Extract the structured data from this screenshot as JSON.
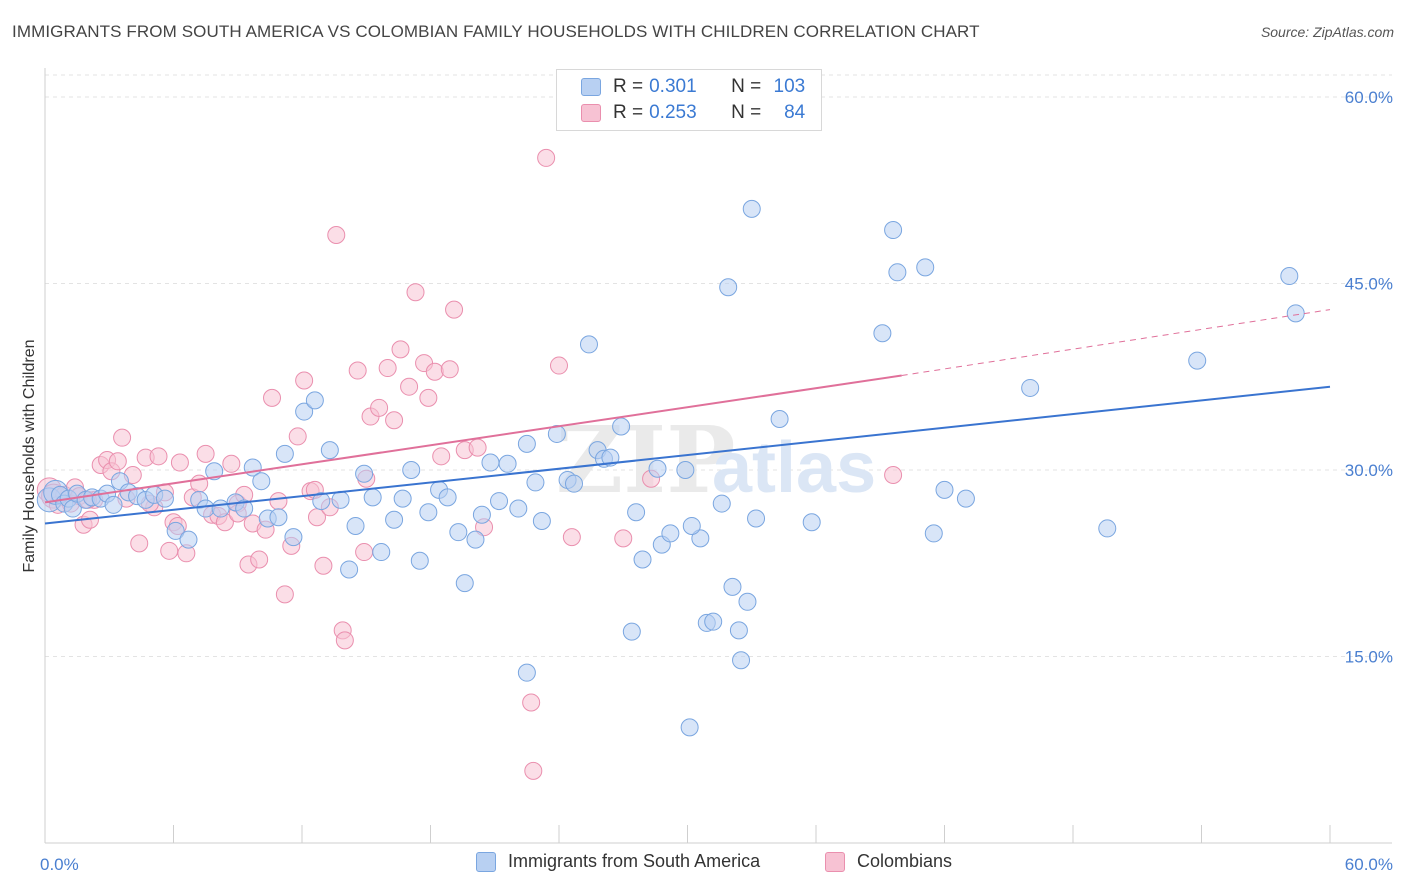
{
  "title": "IMMIGRANTS FROM SOUTH AMERICA VS COLOMBIAN FAMILY HOUSEHOLDS WITH CHILDREN CORRELATION CHART",
  "source": "Source: ZipAtlas.com",
  "watermark": {
    "zip": "ZIP",
    "atlas": "atlas"
  },
  "colors": {
    "blue_fill": "#b8d0f2",
    "blue_stroke": "#7aa6e0",
    "blue_line": "#3a74d0",
    "pink_fill": "#f7c2d3",
    "pink_stroke": "#ea8fae",
    "pink_line": "#e0709a",
    "tick_text": "#4a7fd0",
    "grid": "#e3e3e3"
  },
  "legend": {
    "rows": [
      {
        "r_label": "R = ",
        "r_value": "0.301",
        "n_label": "N = ",
        "n_value": "103"
      },
      {
        "r_label": "R = ",
        "r_value": "0.253",
        "n_label": "N = ",
        "n_value": "84"
      }
    ]
  },
  "chart_data": {
    "type": "scatter",
    "title": "IMMIGRANTS FROM SOUTH AMERICA VS COLOMBIAN FAMILY HOUSEHOLDS WITH CHILDREN CORRELATION CHART",
    "xlabel": "",
    "ylabel": "Family Households with Children",
    "xlim": [
      0,
      60
    ],
    "ylim": [
      0,
      62
    ],
    "x_tick_labels": [
      {
        "value": 0,
        "label": "0.0%"
      },
      {
        "value": 60,
        "label": "60.0%"
      }
    ],
    "y_tick_labels": [
      {
        "value": 15,
        "label": "15.0%"
      },
      {
        "value": 30,
        "label": "30.0%"
      },
      {
        "value": 45,
        "label": "45.0%"
      },
      {
        "value": 60,
        "label": "60.0%"
      }
    ],
    "grid": "horizontal dashed",
    "series": [
      {
        "name": "Immigrants from South America",
        "r": 0.301,
        "n": 103,
        "trend": {
          "x": [
            0,
            60
          ],
          "y": [
            25.7,
            36.7
          ],
          "dashed_from_x": null
        },
        "points": [
          [
            0.2,
            27.6
          ],
          [
            0.5,
            28.2
          ],
          [
            0.7,
            28.0
          ],
          [
            0.9,
            27.3
          ],
          [
            1.1,
            27.7
          ],
          [
            1.3,
            26.9
          ],
          [
            1.5,
            28.1
          ],
          [
            1.9,
            27.6
          ],
          [
            2.2,
            27.8
          ],
          [
            2.6,
            27.7
          ],
          [
            2.9,
            28.1
          ],
          [
            3.2,
            27.2
          ],
          [
            3.5,
            29.1
          ],
          [
            3.9,
            28.2
          ],
          [
            4.3,
            27.9
          ],
          [
            4.7,
            27.6
          ],
          [
            5.1,
            28.0
          ],
          [
            5.6,
            27.7
          ],
          [
            6.1,
            25.1
          ],
          [
            6.7,
            24.4
          ],
          [
            7.2,
            27.6
          ],
          [
            7.5,
            26.9
          ],
          [
            7.9,
            29.9
          ],
          [
            8.2,
            26.9
          ],
          [
            8.9,
            27.4
          ],
          [
            9.3,
            26.9
          ],
          [
            9.7,
            30.2
          ],
          [
            10.1,
            29.1
          ],
          [
            10.4,
            26.1
          ],
          [
            10.9,
            26.2
          ],
          [
            11.2,
            31.3
          ],
          [
            11.6,
            24.6
          ],
          [
            12.1,
            34.7
          ],
          [
            12.6,
            35.6
          ],
          [
            12.9,
            27.5
          ],
          [
            13.3,
            31.6
          ],
          [
            13.8,
            27.6
          ],
          [
            14.2,
            22.0
          ],
          [
            14.5,
            25.5
          ],
          [
            14.9,
            29.7
          ],
          [
            15.3,
            27.8
          ],
          [
            15.7,
            23.4
          ],
          [
            16.3,
            26.0
          ],
          [
            16.7,
            27.7
          ],
          [
            17.1,
            30.0
          ],
          [
            17.5,
            22.7
          ],
          [
            17.9,
            26.6
          ],
          [
            18.4,
            28.4
          ],
          [
            18.8,
            27.8
          ],
          [
            19.3,
            25.0
          ],
          [
            19.6,
            20.9
          ],
          [
            20.1,
            24.4
          ],
          [
            20.4,
            26.4
          ],
          [
            20.8,
            30.6
          ],
          [
            21.2,
            27.5
          ],
          [
            21.6,
            30.5
          ],
          [
            22.1,
            26.9
          ],
          [
            22.5,
            32.1
          ],
          [
            22.9,
            29.0
          ],
          [
            23.2,
            25.9
          ],
          [
            23.9,
            32.9
          ],
          [
            24.4,
            29.2
          ],
          [
            24.7,
            28.9
          ],
          [
            25.4,
            40.1
          ],
          [
            25.8,
            31.6
          ],
          [
            26.1,
            30.9
          ],
          [
            26.4,
            31.0
          ],
          [
            26.9,
            33.5
          ],
          [
            27.4,
            17.0
          ],
          [
            27.6,
            26.6
          ],
          [
            27.9,
            22.8
          ],
          [
            28.6,
            30.1
          ],
          [
            28.8,
            24.0
          ],
          [
            29.2,
            24.9
          ],
          [
            29.9,
            30.0
          ],
          [
            30.1,
            9.3
          ],
          [
            30.6,
            24.5
          ],
          [
            30.9,
            17.7
          ],
          [
            31.2,
            17.8
          ],
          [
            31.6,
            27.3
          ],
          [
            32.1,
            20.6
          ],
          [
            32.8,
            19.4
          ],
          [
            33.2,
            26.1
          ],
          [
            32.5,
            14.7
          ],
          [
            32.4,
            17.1
          ],
          [
            34.3,
            34.1
          ],
          [
            33.0,
            51.0
          ],
          [
            31.9,
            44.7
          ],
          [
            35.8,
            25.8
          ],
          [
            39.6,
            49.3
          ],
          [
            39.1,
            41.0
          ],
          [
            39.8,
            45.9
          ],
          [
            41.1,
            46.3
          ],
          [
            41.5,
            24.9
          ],
          [
            42.0,
            28.4
          ],
          [
            43.0,
            27.7
          ],
          [
            46.0,
            36.6
          ],
          [
            49.6,
            25.3
          ],
          [
            53.8,
            38.8
          ],
          [
            58.1,
            45.6
          ],
          [
            58.4,
            42.6
          ],
          [
            22.5,
            13.7
          ],
          [
            30.2,
            25.5
          ]
        ]
      },
      {
        "name": "Colombians",
        "r": 0.253,
        "n": 84,
        "trend": {
          "x": [
            0,
            40
          ],
          "y": [
            27.4,
            37.6
          ],
          "dashed_from_x": 40,
          "dashed_to": [
            60,
            42.9
          ]
        },
        "points": [
          [
            0.2,
            28.4
          ],
          [
            0.4,
            27.9
          ],
          [
            0.6,
            27.2
          ],
          [
            0.9,
            28.0
          ],
          [
            1.2,
            27.3
          ],
          [
            1.4,
            28.6
          ],
          [
            1.6,
            27.9
          ],
          [
            1.8,
            25.6
          ],
          [
            2.1,
            26.0
          ],
          [
            2.3,
            27.6
          ],
          [
            2.6,
            30.4
          ],
          [
            2.9,
            30.8
          ],
          [
            3.1,
            29.9
          ],
          [
            3.4,
            30.7
          ],
          [
            3.6,
            32.6
          ],
          [
            3.8,
            27.7
          ],
          [
            4.1,
            29.6
          ],
          [
            4.4,
            24.1
          ],
          [
            4.7,
            31.0
          ],
          [
            5.1,
            27.0
          ],
          [
            5.3,
            31.1
          ],
          [
            5.6,
            28.2
          ],
          [
            5.8,
            23.5
          ],
          [
            6.0,
            25.8
          ],
          [
            6.3,
            30.6
          ],
          [
            6.6,
            23.3
          ],
          [
            6.9,
            27.8
          ],
          [
            7.2,
            28.9
          ],
          [
            7.5,
            31.3
          ],
          [
            7.8,
            26.4
          ],
          [
            8.1,
            26.3
          ],
          [
            8.4,
            25.8
          ],
          [
            8.7,
            30.5
          ],
          [
            9.0,
            27.3
          ],
          [
            9.3,
            28.0
          ],
          [
            9.5,
            22.4
          ],
          [
            9.7,
            25.7
          ],
          [
            10.0,
            22.8
          ],
          [
            10.3,
            25.2
          ],
          [
            10.6,
            35.8
          ],
          [
            10.9,
            27.5
          ],
          [
            11.2,
            20.0
          ],
          [
            11.5,
            23.9
          ],
          [
            11.8,
            32.7
          ],
          [
            12.1,
            37.2
          ],
          [
            12.4,
            28.3
          ],
          [
            12.7,
            26.2
          ],
          [
            13.0,
            22.3
          ],
          [
            13.3,
            27.0
          ],
          [
            13.6,
            48.9
          ],
          [
            13.9,
            17.1
          ],
          [
            14.0,
            16.3
          ],
          [
            14.6,
            38.0
          ],
          [
            14.9,
            23.4
          ],
          [
            15.2,
            34.3
          ],
          [
            15.6,
            35.0
          ],
          [
            16.0,
            38.2
          ],
          [
            16.3,
            34.0
          ],
          [
            16.6,
            39.7
          ],
          [
            17.0,
            36.7
          ],
          [
            17.3,
            44.3
          ],
          [
            17.7,
            38.6
          ],
          [
            17.9,
            35.8
          ],
          [
            18.2,
            37.9
          ],
          [
            18.5,
            31.1
          ],
          [
            18.9,
            38.1
          ],
          [
            19.1,
            42.9
          ],
          [
            19.6,
            31.6
          ],
          [
            20.2,
            31.8
          ],
          [
            20.5,
            25.4
          ],
          [
            22.7,
            11.3
          ],
          [
            22.8,
            5.8
          ],
          [
            23.4,
            55.1
          ],
          [
            24.0,
            38.4
          ],
          [
            27.0,
            24.5
          ],
          [
            28.3,
            29.3
          ],
          [
            39.6,
            29.6
          ],
          [
            24.6,
            24.6
          ],
          [
            9.0,
            26.5
          ],
          [
            2.0,
            27.6
          ],
          [
            6.2,
            25.5
          ],
          [
            12.6,
            28.4
          ],
          [
            15.0,
            29.3
          ],
          [
            4.9,
            27.3
          ]
        ]
      }
    ]
  }
}
